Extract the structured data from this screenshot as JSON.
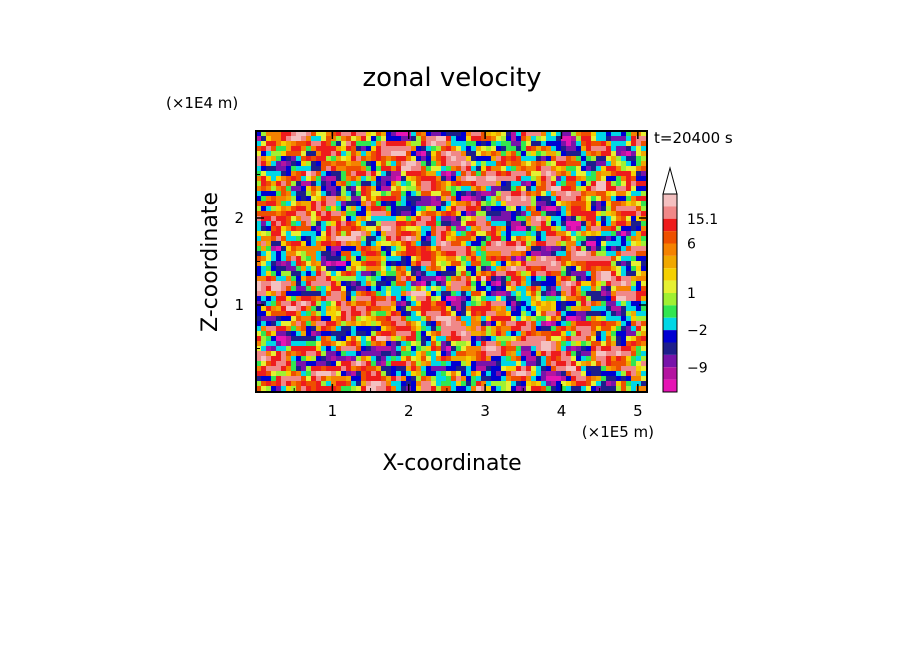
{
  "chart_data": {
    "type": "heatmap",
    "title": "zonal velocity",
    "xlabel": "X-coordinate",
    "ylabel": "Z-coordinate",
    "x_unit_label": "(×1E5 m)",
    "y_unit_label": "(×1E4 m)",
    "time_label": "t=20400 s",
    "xlim": [
      0,
      5.12
    ],
    "ylim": [
      0,
      3.0
    ],
    "x_ticks": [
      1,
      2,
      3,
      4,
      5
    ],
    "y_ticks": [
      1,
      2
    ],
    "x_tick_labels": [
      "1",
      "2",
      "3",
      "4",
      "5"
    ],
    "y_tick_labels": [
      "1",
      "2"
    ],
    "colorbar": {
      "labels": [
        {
          "text": "15.1",
          "value": 15.1
        },
        {
          "text": "6",
          "value": 6
        },
        {
          "text": "1",
          "value": 1
        },
        {
          "text": "−2",
          "value": -2
        },
        {
          "text": "−9",
          "value": -9
        }
      ],
      "bins": [
        {
          "max": 20,
          "color": "#f4c0c0"
        },
        {
          "max": 15.1,
          "color": "#f08888"
        },
        {
          "max": 9,
          "color": "#ee1c1c"
        },
        {
          "max": 6,
          "color": "#ee5000"
        },
        {
          "max": 4,
          "color": "#f58200"
        },
        {
          "max": 2.5,
          "color": "#f0a800"
        },
        {
          "max": 1.7,
          "color": "#f5d000"
        },
        {
          "max": 1,
          "color": "#e6f032"
        },
        {
          "max": 0,
          "color": "#a0f032"
        },
        {
          "max": -1,
          "color": "#32e650"
        },
        {
          "max": -2,
          "color": "#00d7e6"
        },
        {
          "max": -4,
          "color": "#0000d2"
        },
        {
          "max": -6,
          "color": "#1e1e8c"
        },
        {
          "max": -9,
          "color": "#7814aa"
        },
        {
          "max": -12,
          "color": "#b414a0"
        },
        {
          "max": -15.1,
          "color": "#e614b4"
        }
      ],
      "has_upper_arrow": true
    }
  }
}
